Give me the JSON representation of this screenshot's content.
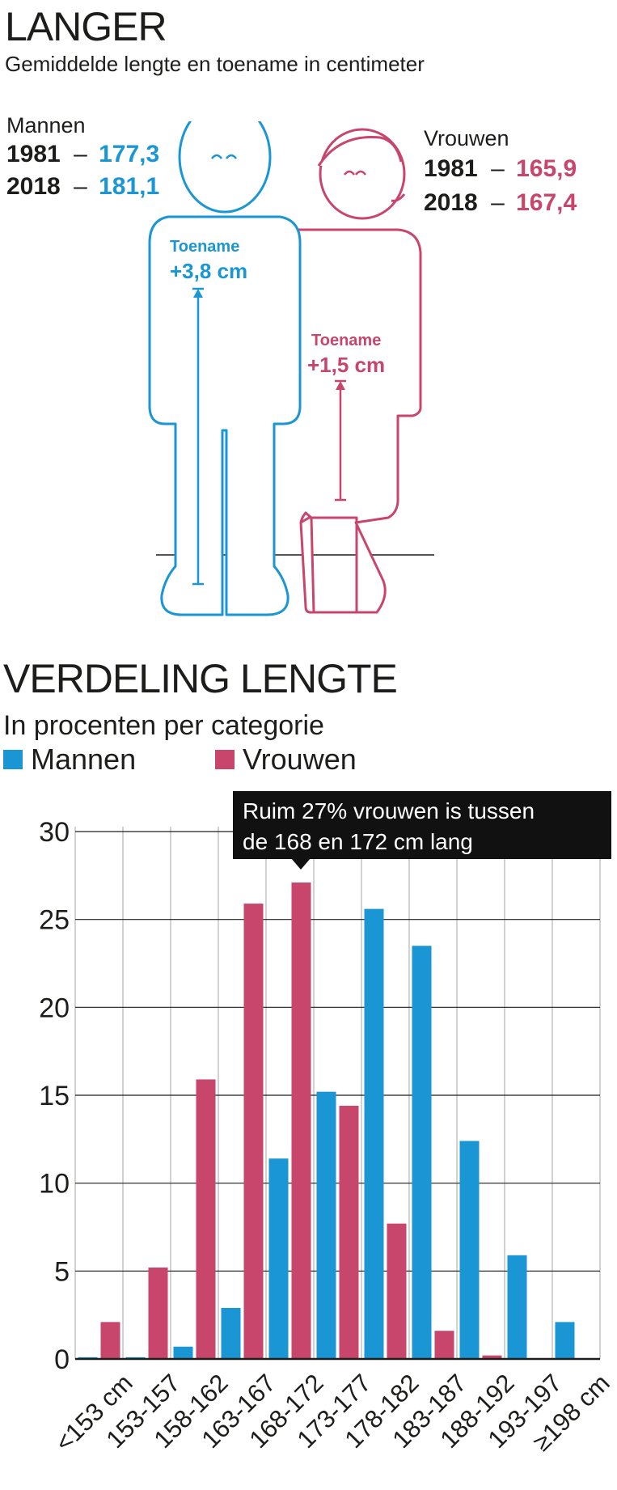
{
  "section1": {
    "title": "LANGER",
    "subtitle": "Gemiddelde lengte en toename in centimeter",
    "men": {
      "label": "Mannen",
      "rows": [
        {
          "year": "1981",
          "dash": "–",
          "value": "177,3"
        },
        {
          "year": "2018",
          "dash": "–",
          "value": "181,1"
        }
      ],
      "increase_label": "Toename",
      "increase_value": "+3,8 cm"
    },
    "women": {
      "label": "Vrouwen",
      "rows": [
        {
          "year": "1981",
          "dash": "–",
          "value": "165,9"
        },
        {
          "year": "2018",
          "dash": "–",
          "value": "167,4"
        }
      ],
      "increase_label": "Toename",
      "increase_value": "+1,5 cm"
    }
  },
  "section2": {
    "title": "VERDELING LENGTE",
    "subtitle": "In procenten per categorie",
    "annotation_line1": "Ruim 27% vrouwen is tussen",
    "annotation_line2": "de 168 en 172 cm lang"
  },
  "colors": {
    "men": "#1a96d4",
    "women": "#c8456c",
    "annotation_bg": "#111111"
  },
  "chart_data": {
    "type": "bar",
    "title": "VERDELING LENGTE",
    "subtitle": "In procenten per categorie",
    "categories": [
      "<153 cm",
      "153-157",
      "158-162",
      "163-167",
      "168-172",
      "173-177",
      "178-182",
      "183-187",
      "188-192",
      "193-197",
      "≥198 cm"
    ],
    "series": [
      {
        "name": "Mannen",
        "color": "#1a96d4",
        "values": [
          0.1,
          0.1,
          0.7,
          2.9,
          11.4,
          15.2,
          25.6,
          23.5,
          12.4,
          5.9,
          2.1
        ]
      },
      {
        "name": "Vrouwen",
        "color": "#c8456c",
        "values": [
          2.1,
          5.2,
          15.9,
          25.9,
          27.1,
          14.4,
          7.7,
          1.6,
          0.2,
          0,
          0
        ]
      }
    ],
    "ylim": [
      0,
      30
    ],
    "yticks": [
      0,
      5,
      10,
      15,
      20,
      25,
      30
    ],
    "grid": true,
    "legend": "top-left"
  }
}
